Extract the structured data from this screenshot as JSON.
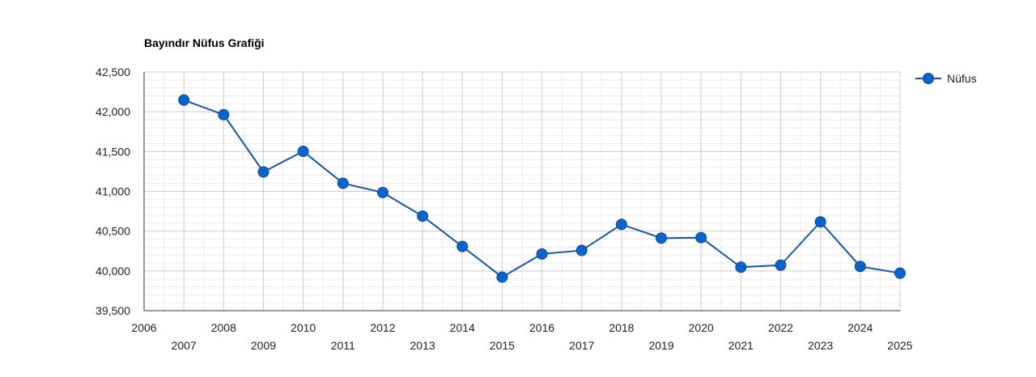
{
  "chart_data": {
    "type": "line",
    "title": "Bayındır Nüfus Grafiği",
    "xlabel": "",
    "ylabel": "",
    "x": [
      2007,
      2008,
      2009,
      2010,
      2011,
      2012,
      2013,
      2014,
      2015,
      2016,
      2017,
      2018,
      2019,
      2020,
      2021,
      2022,
      2023,
      2024,
      2025
    ],
    "series": [
      {
        "name": "Nüfus",
        "values": [
          42148,
          41963,
          41244,
          41503,
          41101,
          40985,
          40688,
          40307,
          39921,
          40213,
          40257,
          40584,
          40412,
          40418,
          40046,
          40072,
          40616,
          40056,
          39971
        ]
      }
    ],
    "xlim": [
      2006,
      2025
    ],
    "ylim": [
      39500,
      42500
    ],
    "x_ticks": [
      "2006",
      "2007",
      "2008",
      "2009",
      "2010",
      "2011",
      "2012",
      "2013",
      "2014",
      "2015",
      "2016",
      "2017",
      "2018",
      "2019",
      "2020",
      "2021",
      "2022",
      "2023",
      "2024",
      "2025"
    ],
    "y_ticks": [
      "39,500",
      "40,000",
      "40,500",
      "41,000",
      "41,500",
      "42,000",
      "42,500"
    ],
    "grid": true,
    "legend": "right",
    "colors": {
      "line": "#1a56a0",
      "marker": "#0b63cc",
      "grid_major": "#cccccc",
      "grid_minor": "#ebebeb"
    }
  }
}
